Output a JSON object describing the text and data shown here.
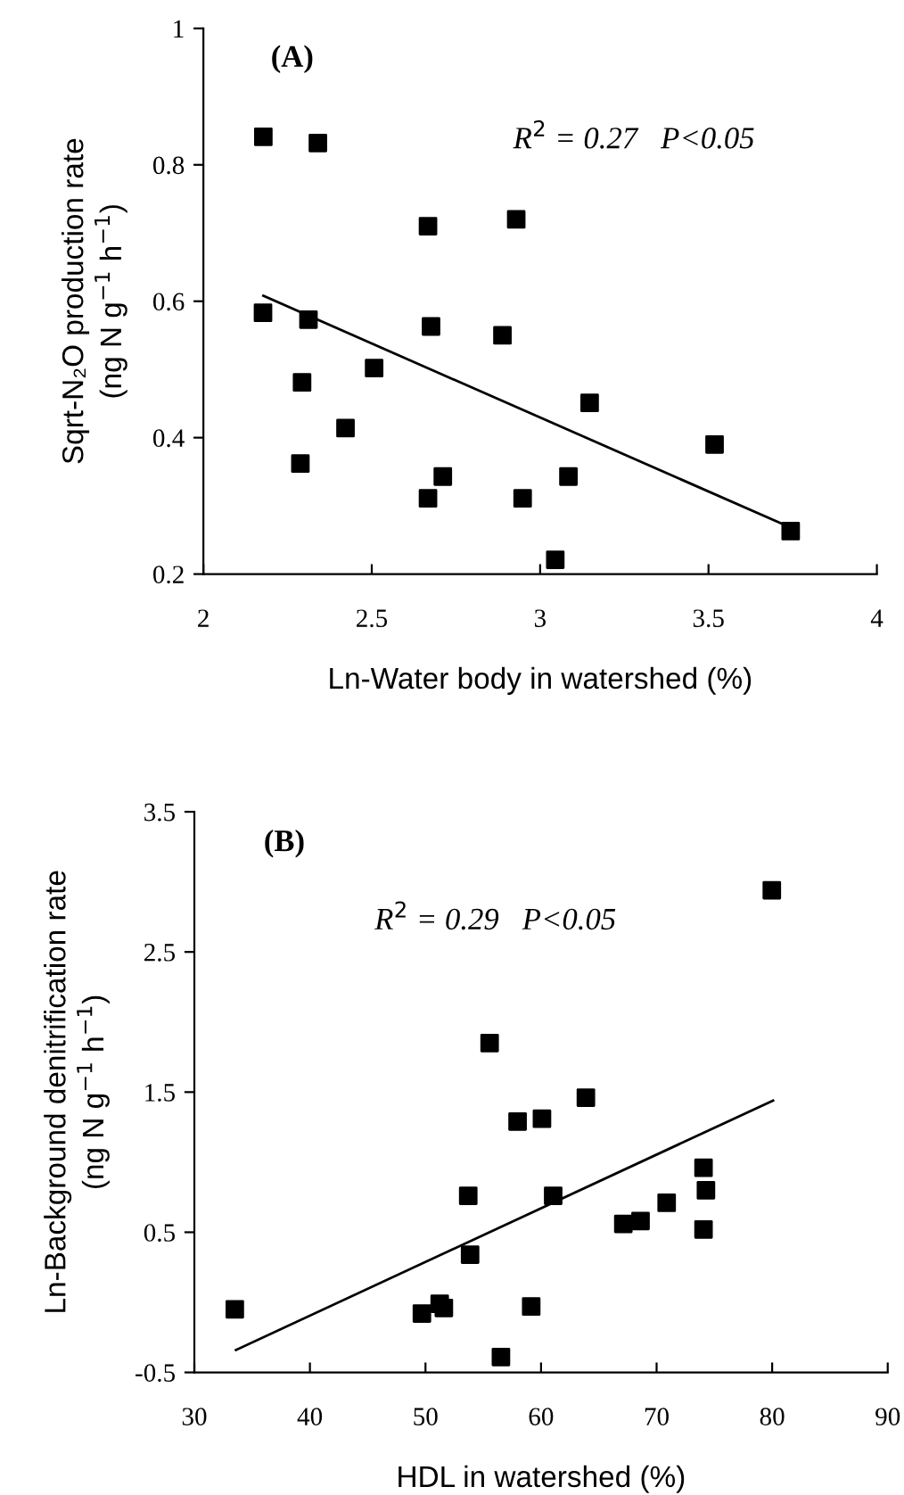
{
  "chart_data": [
    {
      "type": "scatter",
      "xlabel": "Ln-Water body in watershed (%)",
      "ylabel": "Sqrt-N₂O production rate\n(ng N g$^{−1}$ h$^{−1}$)",
      "annotations": [
        "(A)",
        "R$^{2}$ = 0.27   P<0.05"
      ],
      "xlim": [
        2,
        4
      ],
      "ylim": [
        0.2,
        1
      ],
      "xticks": [
        2,
        2.5,
        3,
        3.5,
        4
      ],
      "yticks": [
        0.2,
        0.4,
        0.6,
        0.8,
        1
      ],
      "grid": false,
      "legend": false,
      "series": [
        {
          "marker": "square",
          "color": "#000000",
          "x": [
            2.178,
            2.34,
            2.667,
            2.929,
            2.177,
            2.312,
            2.676,
            2.888,
            2.507,
            2.293,
            3.147,
            2.422,
            3.518,
            2.288,
            2.711,
            3.084,
            2.667,
            2.948,
            3.744,
            3.045
          ],
          "values": [
            0.841,
            0.832,
            0.71,
            0.72,
            0.583,
            0.573,
            0.563,
            0.55,
            0.502,
            0.481,
            0.451,
            0.414,
            0.39,
            0.362,
            0.343,
            0.343,
            0.311,
            0.311,
            0.263,
            0.221
          ]
        },
        {
          "type": "line",
          "marker": "none",
          "color": "#000000",
          "x": [
            2.178,
            3.726
          ],
          "values": [
            0.608,
            0.272
          ]
        }
      ]
    },
    {
      "type": "scatter",
      "xlabel": "HDL in watershed (%)",
      "ylabel": "Ln-Background denitrification rate\n(ng N g$^{−1}$ h$^{−1}$)",
      "annotations": [
        "(B)",
        "R$^{2}$ = 0.29   P<0.05"
      ],
      "xlim": [
        30,
        90
      ],
      "ylim": [
        -0.5,
        3.5
      ],
      "xticks": [
        30,
        40,
        50,
        60,
        70,
        80,
        90
      ],
      "yticks": [
        -0.5,
        0.5,
        1.5,
        2.5,
        3.5
      ],
      "grid": false,
      "legend": false,
      "series": [
        {
          "marker": "square",
          "color": "#000000",
          "x": [
            79.97,
            55.55,
            63.88,
            57.97,
            60.08,
            74.06,
            74.27,
            53.7,
            61.05,
            70.87,
            67.12,
            68.61,
            74.06,
            53.86,
            33.5,
            49.69,
            51.23,
            51.59,
            59.15,
            56.53
          ],
          "values": [
            2.94,
            1.85,
            1.46,
            1.29,
            1.31,
            0.96,
            0.8,
            0.76,
            0.76,
            0.71,
            0.56,
            0.58,
            0.52,
            0.34,
            -0.05,
            -0.08,
            -0.01,
            -0.04,
            -0.03,
            -0.39
          ]
        },
        {
          "type": "line",
          "marker": "none",
          "color": "#000000",
          "x": [
            33.6,
            80.08
          ],
          "values": [
            -0.34,
            1.44
          ]
        }
      ]
    }
  ]
}
